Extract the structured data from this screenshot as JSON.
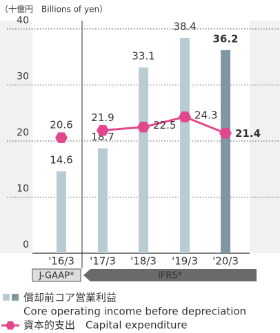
{
  "chart_data": {
    "type": "bar_line",
    "unit_label": "（十億円　Billions of yen）",
    "categories": [
      "'16/3",
      "'17/3",
      "'18/3",
      "'19/3",
      "'20/3"
    ],
    "groups": [
      {
        "label": "J-GAAP*",
        "start": "'16/3",
        "end": "'16/3"
      },
      {
        "label": "IFRS*",
        "start": "'17/3",
        "end": "'20/3"
      }
    ],
    "series": [
      {
        "name": "償却前コア営業利益",
        "name_en": "Core operating income before depreciation",
        "type": "bar",
        "colors": [
          "#b9cbd3",
          "#b9cbd3",
          "#b9cbd3",
          "#b9cbd3",
          "#7f97a2"
        ],
        "values": [
          14.6,
          18.7,
          33.1,
          38.4,
          36.2
        ]
      },
      {
        "name": "資本的支出　Capital expenditure",
        "type": "line",
        "color": "#e2478b",
        "values": [
          20.6,
          21.9,
          22.5,
          24.3,
          21.4
        ]
      }
    ],
    "ylim": [
      0,
      40
    ],
    "yticks": [
      0,
      10,
      20,
      30,
      40
    ],
    "grid": true
  }
}
